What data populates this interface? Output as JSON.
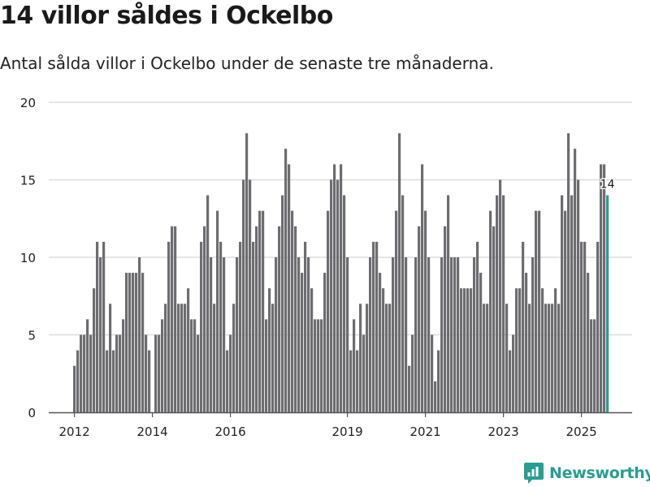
{
  "header": {
    "title": "14 villor såldes i Ockelbo",
    "subtitle": "Antal sålda villor i Ockelbo under de senaste tre månaderna."
  },
  "brand": {
    "name": "Newsworthy",
    "icon": "chart-logo-icon",
    "color": "#2a9d92"
  },
  "colors": {
    "bar": "#6d6c70",
    "highlight": "#2a9d92",
    "grid": "#dddddd",
    "axis": "#555555"
  },
  "chart_data": {
    "type": "bar",
    "title": "14 villor såldes i Ockelbo",
    "xlabel": "",
    "ylabel": "",
    "ylim": [
      0,
      20
    ],
    "yticks": [
      0,
      5,
      10,
      15,
      20
    ],
    "start": "2012-01",
    "xticks": [
      {
        "label": "2012",
        "index": 0
      },
      {
        "label": "2014",
        "index": 24
      },
      {
        "label": "2016",
        "index": 48
      },
      {
        "label": "2019",
        "index": 84
      },
      {
        "label": "2021",
        "index": 108
      },
      {
        "label": "2023",
        "index": 132
      },
      {
        "label": "2025",
        "index": 156
      }
    ],
    "values": [
      3,
      4,
      5,
      5,
      6,
      5,
      8,
      11,
      10,
      11,
      4,
      7,
      4,
      5,
      5,
      6,
      9,
      9,
      9,
      9,
      10,
      9,
      5,
      4,
      null,
      5,
      5,
      6,
      7,
      11,
      12,
      12,
      7,
      7,
      7,
      8,
      6,
      6,
      5,
      11,
      12,
      14,
      10,
      7,
      13,
      11,
      10,
      4,
      5,
      7,
      10,
      11,
      15,
      18,
      15,
      11,
      12,
      13,
      13,
      6,
      8,
      7,
      10,
      12,
      14,
      17,
      16,
      13,
      12,
      10,
      9,
      11,
      10,
      8,
      6,
      6,
      6,
      9,
      13,
      15,
      16,
      15,
      16,
      14,
      10,
      4,
      6,
      4,
      7,
      5,
      7,
      10,
      11,
      11,
      9,
      8,
      7,
      7,
      10,
      13,
      18,
      14,
      10,
      3,
      5,
      10,
      12,
      16,
      13,
      10,
      5,
      2,
      4,
      10,
      12,
      14,
      10,
      10,
      10,
      8,
      8,
      8,
      8,
      10,
      11,
      9,
      7,
      7,
      13,
      12,
      14,
      15,
      14,
      7,
      4,
      5,
      8,
      8,
      11,
      9,
      7,
      10,
      13,
      13,
      8,
      7,
      7,
      7,
      8,
      7,
      14,
      13,
      18,
      14,
      17,
      15,
      11,
      11,
      9,
      6,
      6,
      11,
      16,
      16,
      14
    ],
    "highlight_label": "14"
  }
}
